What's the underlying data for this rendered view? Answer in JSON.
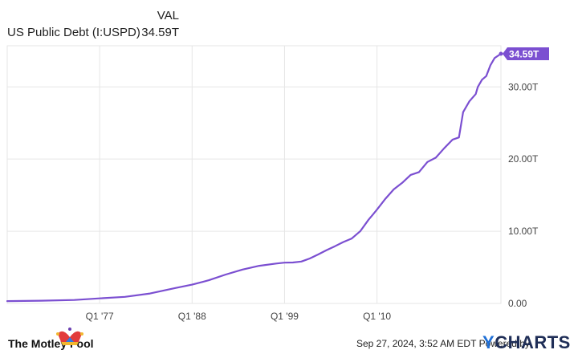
{
  "legend": {
    "header": "VAL",
    "series_name": "US Public Debt (I:USPD)",
    "series_value": "34.59T"
  },
  "footer": {
    "date_text": "Sep 27, 2024, 3:52 AM EDT",
    "powered_by": "Powered by",
    "brand": "CHARTS",
    "brand_letter": "Y",
    "left_logo": "The Motley Fool"
  },
  "colors": {
    "line": "#7b4fd1",
    "grid": "#e6e6e6",
    "axis_text": "#444444",
    "badge": "#7b4fd1"
  },
  "chart_data": {
    "type": "line",
    "title": "",
    "xlabel": "",
    "ylabel": "",
    "y_unit": "T",
    "ylim": [
      0,
      35.7
    ],
    "xlim": [
      1966.0,
      2024.75
    ],
    "x_ticks": [
      {
        "value": 1977,
        "label": "Q1 '77"
      },
      {
        "value": 1988,
        "label": "Q1 '88"
      },
      {
        "value": 1999,
        "label": "Q1 '99"
      },
      {
        "value": 2010,
        "label": "Q1 '10"
      }
    ],
    "y_ticks": [
      {
        "value": 0,
        "label": "0.00"
      },
      {
        "value": 10,
        "label": "10.00T"
      },
      {
        "value": 20,
        "label": "20.00T"
      },
      {
        "value": 30,
        "label": "30.00T"
      }
    ],
    "last_value_label": "34.59T",
    "series": [
      {
        "name": "US Public Debt (I:USPD)",
        "x": [
          1966,
          1970,
          1974,
          1977,
          1980,
          1983,
          1986,
          1988,
          1990,
          1992,
          1994,
          1996,
          1998,
          1999,
          2000,
          2001,
          2002,
          2003,
          2004,
          2005,
          2006,
          2007,
          2008,
          2008.75,
          2009,
          2009.5,
          2010,
          2011,
          2012,
          2013,
          2014,
          2015,
          2016,
          2017,
          2018,
          2019,
          2019.75,
          2020.25,
          2020.5,
          2021,
          2021.75,
          2022,
          2022.5,
          2023,
          2023.5,
          2024,
          2024.75
        ],
        "y": [
          0.32,
          0.38,
          0.48,
          0.7,
          0.91,
          1.38,
          2.13,
          2.6,
          3.21,
          4.0,
          4.69,
          5.22,
          5.53,
          5.65,
          5.67,
          5.81,
          6.23,
          6.78,
          7.38,
          7.93,
          8.51,
          9.0,
          10.0,
          11.2,
          11.6,
          12.3,
          13.0,
          14.5,
          15.8,
          16.7,
          17.8,
          18.2,
          19.6,
          20.2,
          21.5,
          22.7,
          23.0,
          26.5,
          27.0,
          28.0,
          29.0,
          30.0,
          31.0,
          31.5,
          33.0,
          34.0,
          34.59
        ]
      }
    ],
    "grid": true,
    "legend_position": "top-left"
  }
}
